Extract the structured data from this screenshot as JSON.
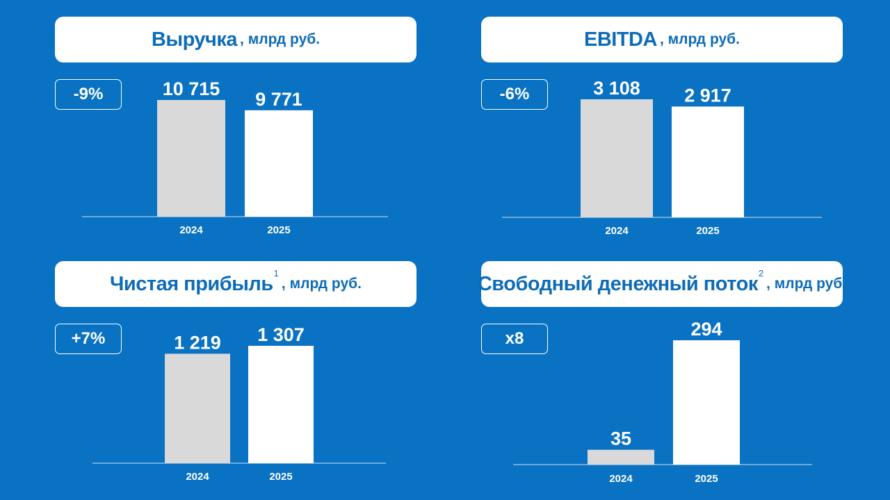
{
  "colors": {
    "background": "#0a72c3",
    "bar_prev": "#d9d9d9",
    "bar_curr": "#ffffff",
    "title_text": "#0d6cb8"
  },
  "chart_data": [
    {
      "type": "bar",
      "title": "Выручка",
      "unit": ", млрд руб.",
      "footnote": "",
      "change": "-9%",
      "categories": [
        "2024",
        "2025"
      ],
      "values": [
        10715,
        9771
      ],
      "value_labels": [
        "10 715",
        "9 771"
      ],
      "ylim": [
        0,
        11700
      ]
    },
    {
      "type": "bar",
      "title": "EBITDA",
      "unit": ", млрд руб.",
      "footnote": "",
      "change": "-6%",
      "categories": [
        "2024",
        "2025"
      ],
      "values": [
        3108,
        2917
      ],
      "value_labels": [
        "3 108",
        "2 917"
      ],
      "ylim": [
        0,
        3430
      ]
    },
    {
      "type": "bar",
      "title": "Чистая прибыль",
      "unit": ", млрд руб.",
      "footnote": "1",
      "change": "+7%",
      "categories": [
        "2024",
        "2025"
      ],
      "values": [
        1219,
        1307
      ],
      "value_labels": [
        "1 219",
        "1 307"
      ],
      "ylim": [
        0,
        1720
      ]
    },
    {
      "type": "bar",
      "title": "Свободный денежный поток",
      "unit": ", млрд руб.",
      "footnote": "2",
      "change": "x8",
      "categories": [
        "2024",
        "2025"
      ],
      "values": [
        35,
        294
      ],
      "value_labels": [
        "35",
        "294"
      ],
      "ylim": [
        0,
        379
      ]
    }
  ]
}
